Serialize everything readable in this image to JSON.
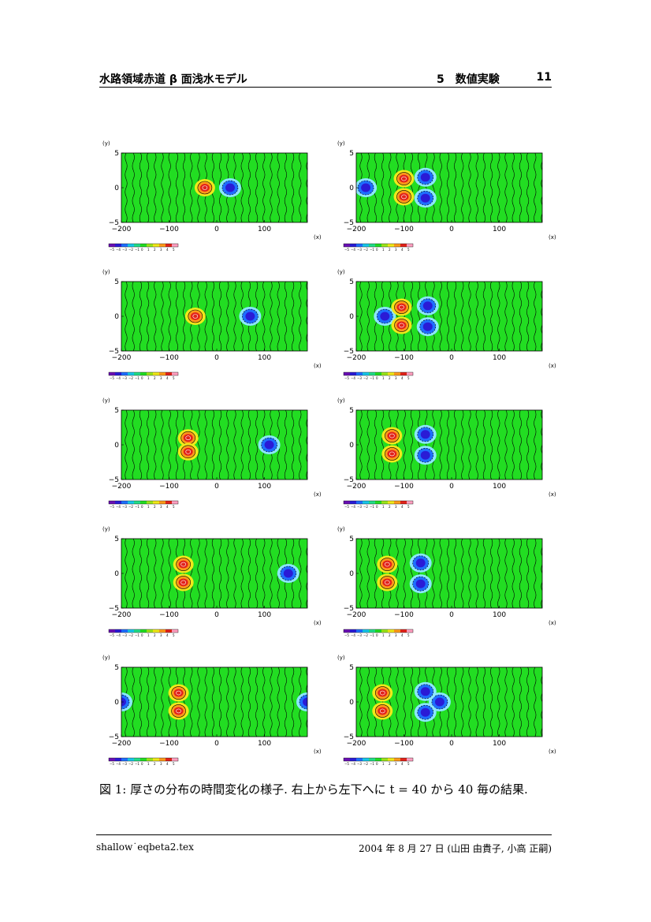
{
  "header": {
    "title": "水路領域赤道 β 面浅水モデル",
    "section": "5　数値実験",
    "page": "11"
  },
  "panels_axes": {
    "ylabel": "(y)",
    "xlabel": "(x)",
    "yticks": [
      "5",
      "0",
      "−5"
    ],
    "xticks": [
      "−200",
      "−100",
      "0",
      "100"
    ],
    "colorbar_ticks": [
      "−5",
      "−4",
      "−3",
      "−2",
      "−1",
      "0",
      "1",
      "2",
      "3",
      "4",
      "5"
    ]
  },
  "colors": {
    "background_field": "#22dd22",
    "contour": "#000000",
    "negative_core": "#2a1bd6",
    "positive_core": "#e2231a",
    "colorbar": [
      "#6a0fb5",
      "#2a1bd6",
      "#1e6fff",
      "#18c6e8",
      "#22dd88",
      "#22dd22",
      "#9be51a",
      "#f0e81a",
      "#ff9a1a",
      "#e2231a",
      "#ff9fc0"
    ]
  },
  "panels": [
    {
      "name": "t40",
      "neg": [
        {
          "x": 28,
          "y": 0
        }
      ],
      "pos": [
        {
          "x": -25,
          "y": 0
        }
      ]
    },
    {
      "name": "t80",
      "neg": [
        {
          "x": -180,
          "y": 0
        },
        {
          "x": -55,
          "y": 1.5
        },
        {
          "x": -55,
          "y": -1.5
        }
      ],
      "pos": [
        {
          "x": -100,
          "y": 1.3
        },
        {
          "x": -100,
          "y": -1.3
        }
      ]
    },
    {
      "name": "t120",
      "neg": [
        {
          "x": 70,
          "y": 0
        }
      ],
      "pos": [
        {
          "x": -45,
          "y": 0
        }
      ]
    },
    {
      "name": "t160",
      "neg": [
        {
          "x": -140,
          "y": 0
        },
        {
          "x": -50,
          "y": 1.5
        },
        {
          "x": -50,
          "y": -1.5
        }
      ],
      "pos": [
        {
          "x": -105,
          "y": 1.3
        },
        {
          "x": -105,
          "y": -1.3
        }
      ]
    },
    {
      "name": "t200",
      "neg": [
        {
          "x": 110,
          "y": 0
        }
      ],
      "pos": [
        {
          "x": -60,
          "y": 1.0
        },
        {
          "x": -60,
          "y": -1.0
        }
      ]
    },
    {
      "name": "t240",
      "neg": [
        {
          "x": -55,
          "y": 1.5
        },
        {
          "x": -55,
          "y": -1.5
        }
      ],
      "pos": [
        {
          "x": -125,
          "y": 1.3
        },
        {
          "x": -125,
          "y": -1.3
        }
      ]
    },
    {
      "name": "t280",
      "neg": [
        {
          "x": 150,
          "y": 0
        }
      ],
      "pos": [
        {
          "x": -70,
          "y": 1.3
        },
        {
          "x": -70,
          "y": -1.3
        }
      ]
    },
    {
      "name": "t320",
      "neg": [
        {
          "x": -65,
          "y": 1.5
        },
        {
          "x": -65,
          "y": -1.5
        }
      ],
      "pos": [
        {
          "x": -135,
          "y": 1.3
        },
        {
          "x": -135,
          "y": -1.3
        }
      ]
    },
    {
      "name": "t360",
      "neg": [
        {
          "x": 190,
          "y": 0
        },
        {
          "x": -200,
          "y": 0
        }
      ],
      "pos": [
        {
          "x": -80,
          "y": 1.3
        },
        {
          "x": -80,
          "y": -1.3
        }
      ]
    },
    {
      "name": "t400",
      "neg": [
        {
          "x": -25,
          "y": 0
        },
        {
          "x": -55,
          "y": 1.5
        },
        {
          "x": -55,
          "y": -1.5
        }
      ],
      "pos": [
        {
          "x": -145,
          "y": 1.3
        },
        {
          "x": -145,
          "y": -1.3
        }
      ]
    }
  ],
  "caption": "図 1: 厚さの分布の時間変化の様子. 右上から左下へに t = 40 から 40 毎の結果.",
  "footer": {
    "left": "shallow˙eqbeta2.tex",
    "right": "2004 年 8 月 27 日 (山田 由貴子, 小高 正嗣)"
  }
}
